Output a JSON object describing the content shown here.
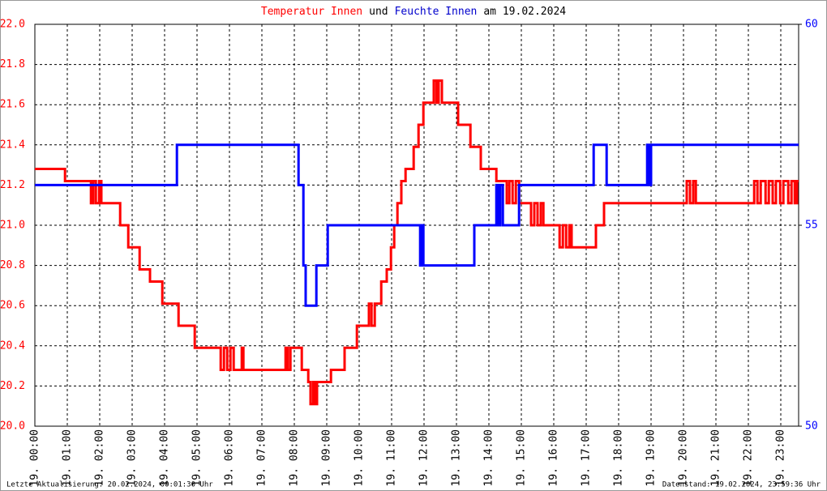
{
  "chart_data": {
    "type": "line",
    "step": true,
    "title": [
      {
        "text": "Temperatur Innen",
        "color": "#ff0000"
      },
      {
        "text": "und",
        "color": "#000000"
      },
      {
        "text": "Feuchte Innen",
        "color": "#0000cc"
      },
      {
        "text": "am 19.02.2024",
        "color": "#000000"
      }
    ],
    "footer_left": "Letzte Aktualisierung: 20.02.2024, 00:01:30 Uhr",
    "footer_right": "Datenstand: 19.02.2024, 23:59:36 Uhr",
    "grid": true,
    "xlim": [
      0,
      23.55
    ],
    "xticks": [
      {
        "value": 0,
        "label": "19. 00:00"
      },
      {
        "value": 1,
        "label": "19. 01:00"
      },
      {
        "value": 2,
        "label": "19. 02:00"
      },
      {
        "value": 3,
        "label": "19. 03:00"
      },
      {
        "value": 4,
        "label": "19. 04:00"
      },
      {
        "value": 5,
        "label": "19. 05:00"
      },
      {
        "value": 6,
        "label": "19. 06:00"
      },
      {
        "value": 7,
        "label": "19. 07:00"
      },
      {
        "value": 8,
        "label": "19. 08:00"
      },
      {
        "value": 9,
        "label": "19. 09:00"
      },
      {
        "value": 10,
        "label": "19. 10:00"
      },
      {
        "value": 11,
        "label": "19. 11:00"
      },
      {
        "value": 12,
        "label": "19. 12:00"
      },
      {
        "value": 13,
        "label": "19. 13:00"
      },
      {
        "value": 14,
        "label": "19. 14:00"
      },
      {
        "value": 15,
        "label": "19. 15:00"
      },
      {
        "value": 16,
        "label": "19. 16:00"
      },
      {
        "value": 17,
        "label": "19. 17:00"
      },
      {
        "value": 18,
        "label": "19. 18:00"
      },
      {
        "value": 19,
        "label": "19. 19:00"
      },
      {
        "value": 20,
        "label": "19. 20:00"
      },
      {
        "value": 21,
        "label": "19. 21:00"
      },
      {
        "value": 22,
        "label": "19. 22:00"
      },
      {
        "value": 23,
        "label": "19. 23:00"
      }
    ],
    "ylim": [
      20.0,
      22.0
    ],
    "yticks": [
      {
        "value": 20.0,
        "label": "20.0"
      },
      20.2,
      20.4,
      20.6,
      20.8,
      {
        "value": 21.0,
        "label": "21.0"
      },
      21.2,
      21.4,
      21.6,
      21.8,
      {
        "value": 22.0,
        "label": "22.0"
      }
    ],
    "y2lim": [
      50,
      60
    ],
    "y2ticks": [
      50,
      55,
      60
    ],
    "series": [
      {
        "name": "Temperatur Innen",
        "color": "#ff0000",
        "x": [
          0,
          0.93,
          1.73,
          1.8,
          1.88,
          1.98,
          2.05,
          2.63,
          2.88,
          3.23,
          3.55,
          3.93,
          4.43,
          4.93,
          5.73,
          5.83,
          5.93,
          6.03,
          6.13,
          6.38,
          6.43,
          7.73,
          7.8,
          7.88,
          8.23,
          8.43,
          8.5,
          8.58,
          8.63,
          8.7,
          9.13,
          9.55,
          9.93,
          10.3,
          10.38,
          10.48,
          10.68,
          10.85,
          10.98,
          11.08,
          11.18,
          11.3,
          11.43,
          11.68,
          11.83,
          11.98,
          12.3,
          12.38,
          12.45,
          12.55,
          13.05,
          13.43,
          13.75,
          14.23,
          14.55,
          14.63,
          14.73,
          14.83,
          14.93,
          15.3,
          15.4,
          15.5,
          15.6,
          15.68,
          16.18,
          16.28,
          16.38,
          16.48,
          16.55,
          17.3,
          17.55,
          20.1,
          20.2,
          20.3,
          20.38,
          22.18,
          22.28,
          22.38,
          22.53,
          22.63,
          22.75,
          22.85,
          22.98,
          23.08,
          23.23,
          23.33,
          23.43,
          23.5,
          23.55
        ],
        "values": [
          21.28,
          21.22,
          21.11,
          21.22,
          21.11,
          21.22,
          21.11,
          21.0,
          20.89,
          20.78,
          20.72,
          20.61,
          20.5,
          20.39,
          20.28,
          20.39,
          20.28,
          20.39,
          20.28,
          20.39,
          20.28,
          20.39,
          20.28,
          20.39,
          20.28,
          20.22,
          20.11,
          20.22,
          20.11,
          20.22,
          20.28,
          20.39,
          20.5,
          20.61,
          20.5,
          20.61,
          20.72,
          20.78,
          20.89,
          21.0,
          21.11,
          21.22,
          21.28,
          21.39,
          21.5,
          21.61,
          21.72,
          21.61,
          21.72,
          21.61,
          21.5,
          21.39,
          21.28,
          21.22,
          21.11,
          21.22,
          21.11,
          21.22,
          21.11,
          21.0,
          21.11,
          21.0,
          21.11,
          21.0,
          20.89,
          21.0,
          20.89,
          21.0,
          20.89,
          21.0,
          21.11,
          21.22,
          21.11,
          21.22,
          21.11,
          21.22,
          21.11,
          21.22,
          21.11,
          21.22,
          21.11,
          21.22,
          21.11,
          21.22,
          21.11,
          21.22,
          21.11,
          21.22,
          21.22
        ]
      },
      {
        "name": "Feuchte Innen",
        "color": "#0000ff",
        "axis": "y2",
        "x": [
          0,
          4.38,
          8.13,
          8.28,
          8.35,
          8.68,
          9.03,
          11.88,
          11.93,
          11.98,
          13.55,
          14.23,
          14.3,
          14.35,
          14.43,
          14.93,
          17.23,
          17.63,
          18.88,
          18.93,
          19.0,
          23.55
        ],
        "values": [
          56,
          57,
          56,
          54,
          53,
          54,
          55,
          54,
          55,
          54,
          55,
          56,
          55,
          56,
          55,
          56,
          57,
          56,
          57,
          56,
          57,
          57
        ]
      }
    ]
  }
}
